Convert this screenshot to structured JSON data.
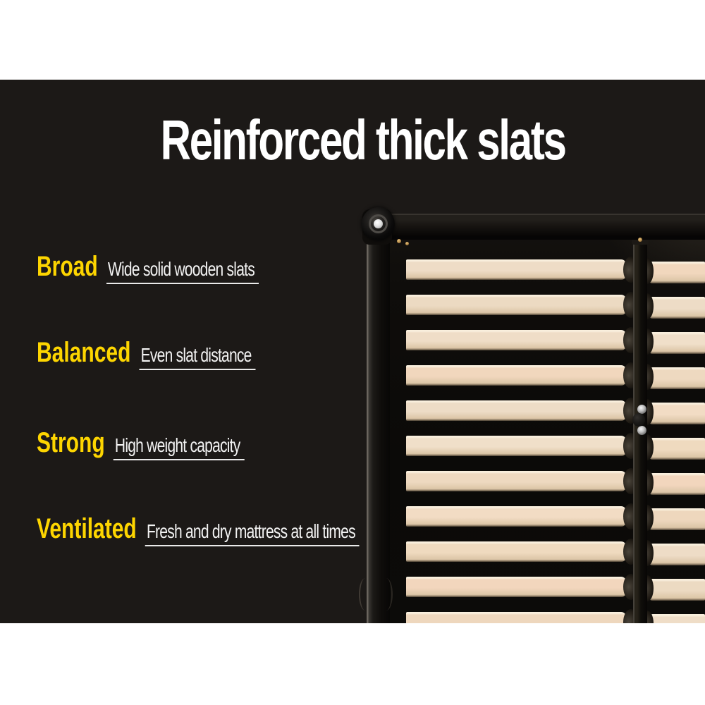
{
  "headline": {
    "text": "Reinforced thick slats"
  },
  "features": [
    {
      "label": "Broad",
      "description": "Wide solid wooden slats"
    },
    {
      "label": "Balanced",
      "description": "Even slat distance"
    },
    {
      "label": "Strong",
      "description": "High weight capacity"
    },
    {
      "label": "Ventilated",
      "description": "Fresh and dry mattress at all times"
    }
  ],
  "colors": {
    "page_background": "#ffffff",
    "panel_background": "#1c1917",
    "headline_text": "#ffffff",
    "feature_label_accent": "#fdd500",
    "feature_description_text": "#f3f3f3",
    "underline": "#eaeaea",
    "wood_slat": "#ecd9be",
    "frame_black": "#121009"
  },
  "photo": {
    "subject": "bed-frame-corner-with-wooden-slats"
  }
}
